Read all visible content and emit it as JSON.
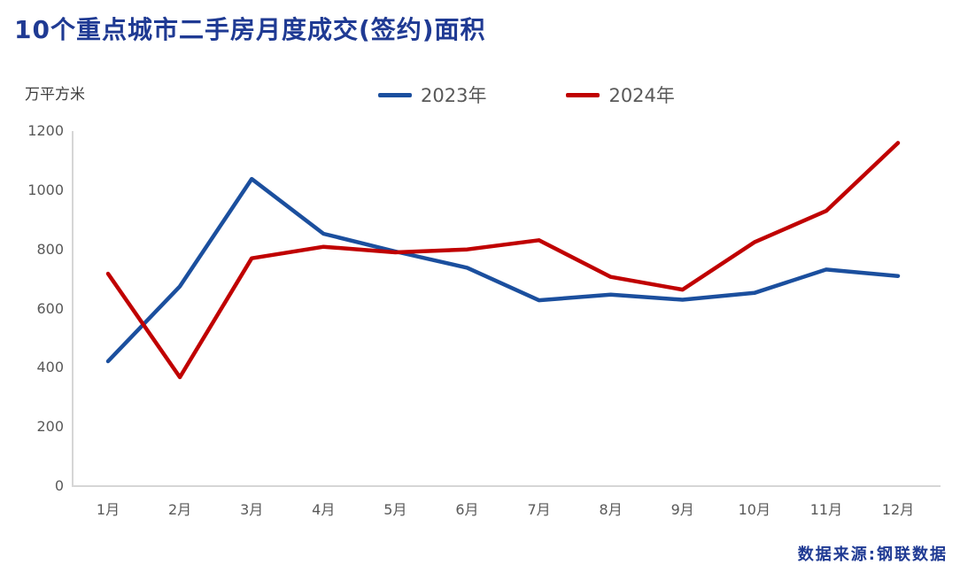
{
  "title": "10个重点城市二手房月度成交(签约)面积",
  "unit_label": "万平方米",
  "source": "数据来源:钢联数据",
  "colors": {
    "title_text": "#1F3A93",
    "source_text": "#1F3A93",
    "axis_text": "#595959",
    "axis_line": "#D6D6D6",
    "series_2023": "#1B4F9E",
    "series_2024": "#C00000"
  },
  "chart_data": {
    "type": "line",
    "title": "10个重点城市二手房月度成交(签约)面积",
    "ylabel": "万平方米",
    "xlabel": "",
    "categories": [
      "1月",
      "2月",
      "3月",
      "4月",
      "5月",
      "6月",
      "7月",
      "8月",
      "9月",
      "10月",
      "11月",
      "12月"
    ],
    "series": [
      {
        "name": "2023年",
        "color": "#1B4F9E",
        "values": [
          422,
          675,
          1038,
          853,
          793,
          738,
          628,
          647,
          630,
          653,
          732,
          710
        ]
      },
      {
        "name": "2024年",
        "color": "#C00000",
        "values": [
          718,
          368,
          770,
          809,
          790,
          800,
          831,
          707,
          664,
          824,
          930,
          1160
        ]
      }
    ],
    "ylim": [
      0,
      1200
    ],
    "y_ticks": [
      0,
      200,
      400,
      600,
      800,
      1000,
      1200
    ],
    "grid": false,
    "legend_position": "top-center"
  }
}
